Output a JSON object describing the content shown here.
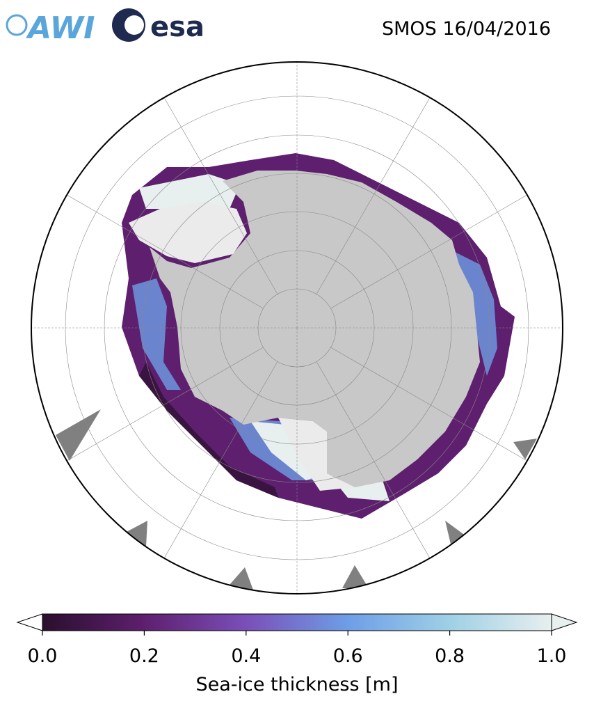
{
  "header": {
    "logos": [
      "AWI",
      "esa"
    ],
    "title": "SMOS 16/04/2016"
  },
  "colorbar": {
    "label": "Sea-ice thickness [m]",
    "lim": [
      0,
      1
    ],
    "ticks": [
      {
        "value": 0,
        "label": "0.0"
      },
      {
        "value": 0.2,
        "label": "0.2"
      },
      {
        "value": 0.4,
        "label": "0.4"
      },
      {
        "value": 0.6,
        "label": "0.6"
      },
      {
        "value": 0.8,
        "label": "0.8"
      },
      {
        "value": 1,
        "label": "1.0"
      }
    ],
    "colors": [
      "#2a0f2e",
      "#5e1f6e",
      "#7a4fb8",
      "#6e9ee6",
      "#9fd0e6",
      "#e8efef"
    ]
  }
}
